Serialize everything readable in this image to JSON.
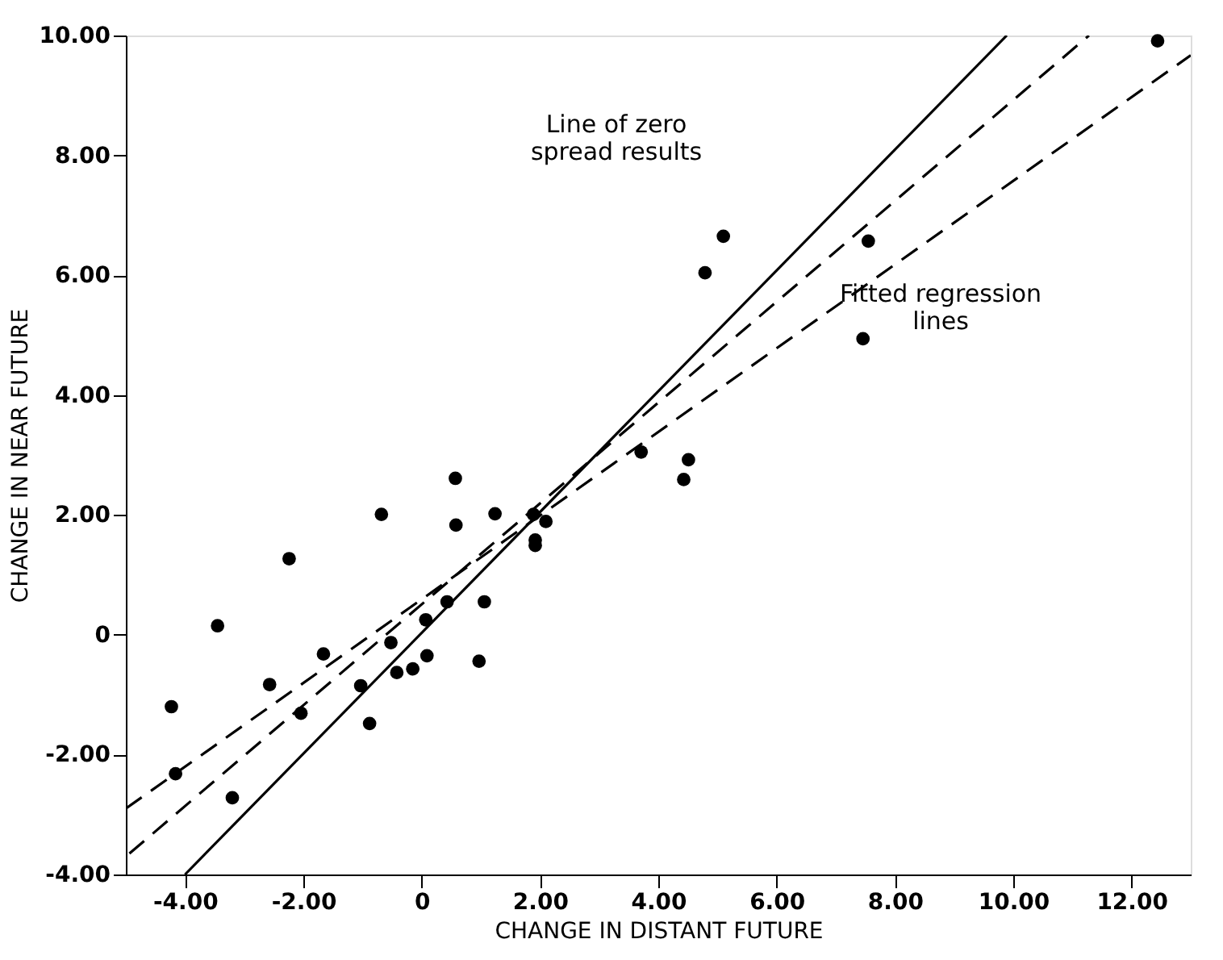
{
  "chart_data": {
    "type": "scatter",
    "xlabel": "CHANGE IN DISTANT FUTURE",
    "ylabel": "CHANGE IN NEAR FUTURE",
    "xlim": [
      -5,
      13
    ],
    "ylim": [
      -4,
      10
    ],
    "xticks": [
      {
        "value": -4,
        "label": "-4.00"
      },
      {
        "value": -2,
        "label": "-2.00"
      },
      0,
      {
        "value": 2,
        "label": "2.00"
      },
      {
        "value": 4,
        "label": "4.00"
      },
      {
        "value": 6,
        "label": "6.00"
      },
      {
        "value": 8,
        "label": "8.00"
      },
      {
        "value": 10,
        "label": "10.00"
      },
      {
        "value": 12,
        "label": "12.00"
      }
    ],
    "yticks": [
      {
        "value": -4,
        "label": "-4.00"
      },
      {
        "value": -2,
        "label": "-2.00"
      },
      0,
      {
        "value": 2,
        "label": "2.00"
      },
      {
        "value": 4,
        "label": "4.00"
      },
      {
        "value": 6,
        "label": "6.00"
      },
      {
        "value": 8,
        "label": "8.00"
      },
      {
        "value": 10,
        "label": "10.00"
      }
    ],
    "grid": false,
    "series": [
      {
        "color": "#000000",
        "marker": "circle",
        "x": [
          -4.23,
          -4.16,
          -3.45,
          -3.2,
          -2.57,
          -2.24,
          -2.04,
          -1.66,
          -1.03,
          -0.88,
          -0.68,
          -0.52,
          -0.42,
          -0.15,
          0.07,
          0.09,
          0.43,
          0.57,
          0.58,
          0.97,
          1.06,
          1.24,
          1.89,
          1.92,
          1.92,
          2.1,
          3.71,
          4.51,
          4.43,
          12.44,
          7.55,
          7.46,
          5.1,
          4.79
        ],
        "values": [
          -1.2,
          -2.32,
          0.15,
          -2.72,
          -0.83,
          1.27,
          -1.31,
          -0.32,
          -0.85,
          -1.48,
          2.01,
          -0.13,
          -0.63,
          -0.57,
          0.25,
          -0.35,
          0.55,
          2.61,
          1.83,
          -0.44,
          0.55,
          2.02,
          2.01,
          1.58,
          1.49,
          1.89,
          3.05,
          2.92,
          2.59,
          9.91,
          6.57,
          4.94,
          6.65,
          6.04
        ]
      },
      {
        "type": "line",
        "color": "#000000",
        "line_style": "solid",
        "x": [
          -4,
          9.89
        ],
        "values": [
          -4,
          10
        ]
      },
      {
        "type": "line",
        "color": "#000000",
        "line_style": "dashed",
        "x": [
          -4.94,
          11.28
        ],
        "values": [
          -3.65,
          10
        ]
      },
      {
        "type": "line",
        "color": "#000000",
        "line_style": "dashed",
        "x": [
          -5,
          13
        ],
        "values": [
          -2.9,
          9.67
        ]
      }
    ],
    "annotations": [
      "Line of zero\nspread results",
      "Fitted regression\nlines"
    ]
  }
}
